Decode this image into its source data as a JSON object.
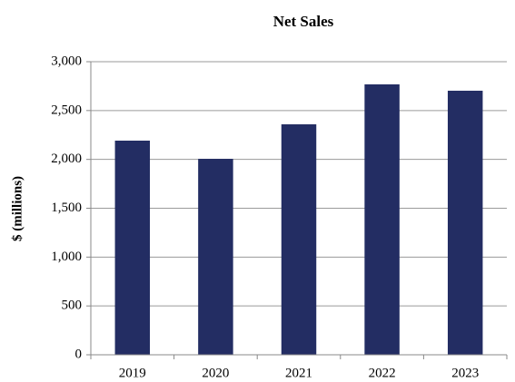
{
  "chart_data": {
    "type": "bar",
    "title": "Net Sales",
    "y_label": "$ (millions)",
    "categories": [
      "2019",
      "2020",
      "2021",
      "2022",
      "2023"
    ],
    "values": [
      2192,
      2006,
      2359,
      2768,
      2703
    ],
    "color": "#232d63",
    "ylim": [
      0,
      3000
    ],
    "yticks": [
      0,
      500,
      {
        "value": 1000,
        "label": "1,000"
      },
      {
        "value": 1500,
        "label": "1,500"
      },
      {
        "value": 2000,
        "label": "2,000"
      },
      {
        "value": 2500,
        "label": "2,500"
      },
      {
        "value": 3000,
        "label": "3,000"
      }
    ],
    "grid": true
  }
}
